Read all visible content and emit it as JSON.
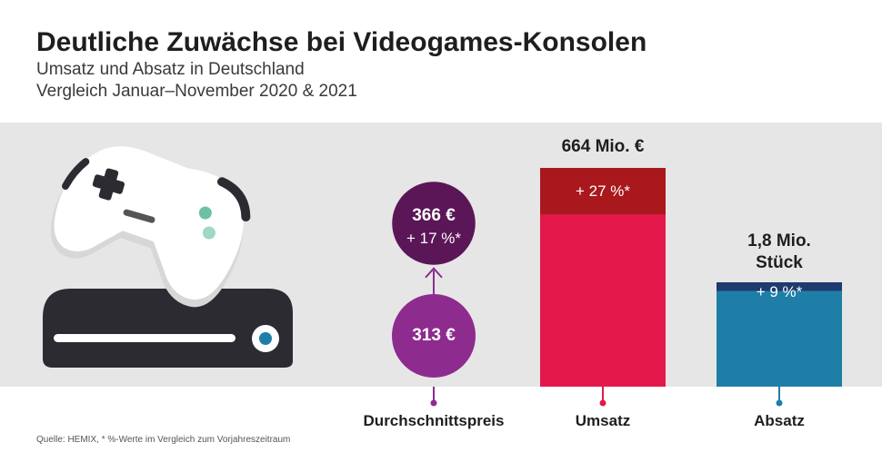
{
  "title": "Deutliche Zuwächse bei Videogames-Konsolen",
  "subtitle_line1": "Umsatz und Absatz in Deutschland",
  "subtitle_line2": "Vergleich Januar–November 2020 & 2021",
  "source": "Quelle: HEMIX, * %-Werte im Vergleich zum Vorjahreszeitraum",
  "colors": {
    "price_2020": "#8e2b8e",
    "price_2021": "#5a1657",
    "umsatz_base": "#e3194b",
    "umsatz_growth": "#a9181d",
    "absatz_base": "#1f7ea8",
    "absatz_growth": "#1e3a6e",
    "band": "#e6e6e6"
  },
  "chart_data": [
    {
      "type": "bubble",
      "category": "Durchschnittspreis",
      "values_eur": {
        "2020": 313,
        "2021": 366
      },
      "label_2020": "313 €",
      "label_2021": "366 €",
      "growth_label": "+ 17 %*",
      "growth_pct": 17
    },
    {
      "type": "bar",
      "category": "Umsatz",
      "value_mio_eur": 664,
      "value_label": "664 Mio. €",
      "growth_pct": 27,
      "growth_label": "+ 27 %*"
    },
    {
      "type": "bar",
      "category": "Absatz",
      "value_mio_units": 1.8,
      "value_label_line1": "1,8 Mio.",
      "value_label_line2": "Stück",
      "growth_pct": 9,
      "growth_label": "+ 9 %*"
    }
  ]
}
